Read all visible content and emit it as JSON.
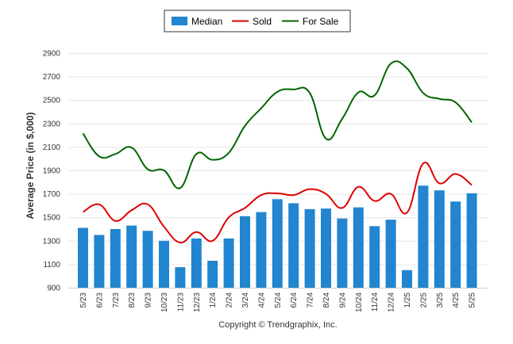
{
  "chart_data": {
    "type": "bar",
    "categories": [
      "5/23",
      "6/23",
      "7/23",
      "8/23",
      "9/23",
      "10/23",
      "11/23",
      "12/23",
      "1/24",
      "2/24",
      "3/24",
      "4/24",
      "5/24",
      "6/24",
      "7/24",
      "8/24",
      "9/24",
      "10/24",
      "11/24",
      "12/24",
      "1/25",
      "2/25",
      "3/25",
      "4/25",
      "5/25"
    ],
    "series": [
      {
        "name": "Median",
        "type": "bar",
        "color": "#2185d0",
        "values": [
          1410,
          1350,
          1400,
          1430,
          1385,
          1300,
          1075,
          1320,
          1130,
          1320,
          1510,
          1545,
          1655,
          1620,
          1570,
          1575,
          1490,
          1585,
          1425,
          1480,
          1050,
          1770,
          1730,
          1635,
          1705
        ]
      },
      {
        "name": "Sold",
        "type": "line",
        "color": "#e00000",
        "values": [
          1545,
          1610,
          1470,
          1560,
          1610,
          1420,
          1285,
          1375,
          1300,
          1500,
          1580,
          1690,
          1705,
          1690,
          1740,
          1700,
          1580,
          1760,
          1640,
          1700,
          1540,
          1960,
          1790,
          1870,
          1775
        ]
      },
      {
        "name": "For Sale",
        "type": "line",
        "color": "#006400",
        "values": [
          2215,
          2020,
          2040,
          2095,
          1910,
          1900,
          1750,
          2040,
          1990,
          2050,
          2280,
          2430,
          2570,
          2590,
          2560,
          2170,
          2340,
          2565,
          2540,
          2810,
          2770,
          2560,
          2510,
          2480,
          2310
        ]
      }
    ],
    "ylabel": "Average Price (in $,000)",
    "xlabel": "",
    "ylim": [
      900,
      2900
    ],
    "yticks": [
      "2900",
      "2700",
      "2500",
      "2300",
      "2100",
      "1900",
      "1700",
      "1500",
      "1300",
      "1100",
      "900"
    ],
    "grid": true,
    "legend_position": "top-center",
    "footer": "Copyright © Trendgraphix, Inc."
  }
}
